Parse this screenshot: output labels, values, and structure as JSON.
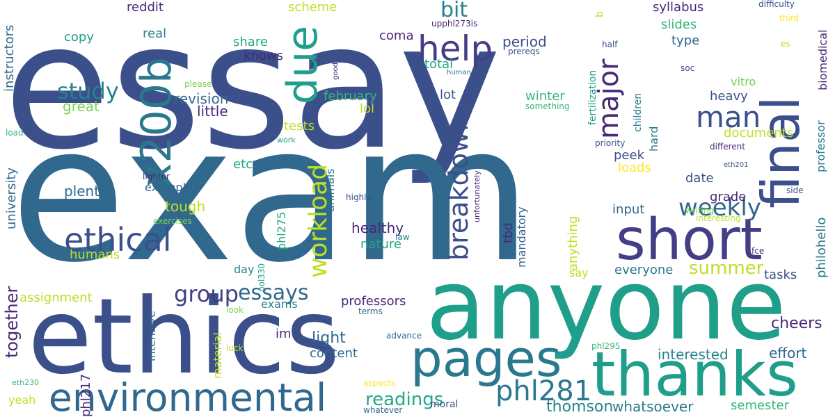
{
  "words": [
    {
      "text": "essay"
    },
    {
      "text": "exam"
    },
    {
      "text": "anyone"
    },
    {
      "text": "ethics"
    },
    {
      "text": "thanks"
    },
    {
      "text": "final"
    },
    {
      "text": "short"
    },
    {
      "text": "pages"
    },
    {
      "text": "environmental"
    },
    {
      "text": "due"
    },
    {
      "text": "x200b"
    },
    {
      "text": "breakdown"
    },
    {
      "text": "help"
    },
    {
      "text": "ethical"
    },
    {
      "text": "man"
    },
    {
      "text": "major"
    },
    {
      "text": "phl281"
    },
    {
      "text": "workload"
    },
    {
      "text": "weekly"
    },
    {
      "text": "study"
    },
    {
      "text": "group"
    },
    {
      "text": "essays"
    },
    {
      "text": "readings"
    },
    {
      "text": "summer"
    },
    {
      "text": "together"
    },
    {
      "text": "bit"
    },
    {
      "text": "cheers"
    },
    {
      "text": "thomson"
    },
    {
      "text": "whatsoever"
    },
    {
      "text": "effort"
    },
    {
      "text": "interested"
    },
    {
      "text": "semester"
    },
    {
      "text": "professors"
    },
    {
      "text": "content"
    },
    {
      "text": "light"
    },
    {
      "text": "tough"
    },
    {
      "text": "healthy"
    },
    {
      "text": "plenty"
    },
    {
      "text": "period"
    },
    {
      "text": "revision"
    },
    {
      "text": "little"
    },
    {
      "text": "great"
    },
    {
      "text": "syllabus"
    },
    {
      "text": "slides"
    },
    {
      "text": "type"
    },
    {
      "text": "share"
    },
    {
      "text": "knows"
    },
    {
      "text": "copy"
    },
    {
      "text": "reddit"
    },
    {
      "text": "scheme"
    },
    {
      "text": "real"
    },
    {
      "text": "coma"
    },
    {
      "text": "total"
    },
    {
      "text": "lot"
    },
    {
      "text": "february"
    },
    {
      "text": "lol"
    },
    {
      "text": "winter"
    },
    {
      "text": "heavy"
    },
    {
      "text": "documents"
    },
    {
      "text": "tests"
    },
    {
      "text": "etc"
    },
    {
      "text": "date"
    },
    {
      "text": "peek"
    },
    {
      "text": "loads"
    },
    {
      "text": "grade"
    },
    {
      "text": "input"
    },
    {
      "text": "hard"
    },
    {
      "text": "everyone"
    },
    {
      "text": "tasks"
    },
    {
      "text": "say"
    },
    {
      "text": "nature"
    },
    {
      "text": "example"
    },
    {
      "text": "humans"
    },
    {
      "text": "assignment"
    },
    {
      "text": "exams"
    },
    {
      "text": "day"
    },
    {
      "text": "im"
    },
    {
      "text": "yeah"
    },
    {
      "text": "moral"
    },
    {
      "text": "university"
    },
    {
      "text": "instructors"
    },
    {
      "text": "phl217"
    },
    {
      "text": "intensive"
    },
    {
      "text": "phl275"
    },
    {
      "text": "animals"
    },
    {
      "text": "tbd"
    },
    {
      "text": "mandatory"
    },
    {
      "text": "anything"
    },
    {
      "text": "material"
    },
    {
      "text": "fertilization"
    },
    {
      "text": "children"
    },
    {
      "text": "professor"
    },
    {
      "text": "biomedical"
    },
    {
      "text": "philohello"
    },
    {
      "text": "vitro"
    },
    {
      "text": "upphl273is"
    },
    {
      "text": "prereqs"
    },
    {
      "text": "human"
    },
    {
      "text": "something"
    },
    {
      "text": "good"
    },
    {
      "text": "please"
    },
    {
      "text": "difficulty"
    },
    {
      "text": "third"
    },
    {
      "text": "half"
    },
    {
      "text": "es"
    },
    {
      "text": "soc"
    },
    {
      "text": "b"
    },
    {
      "text": "priority"
    },
    {
      "text": "different"
    },
    {
      "text": "eth201"
    },
    {
      "text": "side"
    },
    {
      "text": "writing"
    },
    {
      "text": "interesting"
    },
    {
      "text": "load"
    },
    {
      "text": "work"
    },
    {
      "text": "lighter"
    },
    {
      "text": "exercises"
    },
    {
      "text": "highly"
    },
    {
      "text": "unfortunately"
    },
    {
      "text": "law"
    },
    {
      "text": "pol330"
    },
    {
      "text": "fce"
    },
    {
      "text": "look"
    },
    {
      "text": "terms"
    },
    {
      "text": "advance"
    },
    {
      "text": "luck"
    },
    {
      "text": "phl295"
    },
    {
      "text": "aspects"
    },
    {
      "text": "eth230"
    },
    {
      "text": "whatever"
    }
  ],
  "colors": {
    "background": "#ffffff",
    "palette": [
      "#3b4f8a",
      "#433e85",
      "#2a788e",
      "#22a785",
      "#31688e",
      "#482878",
      "#7ad151",
      "#bddf26",
      "#fde725",
      "#26828e",
      "#440154",
      "#1f9e89",
      "#35b779"
    ]
  }
}
